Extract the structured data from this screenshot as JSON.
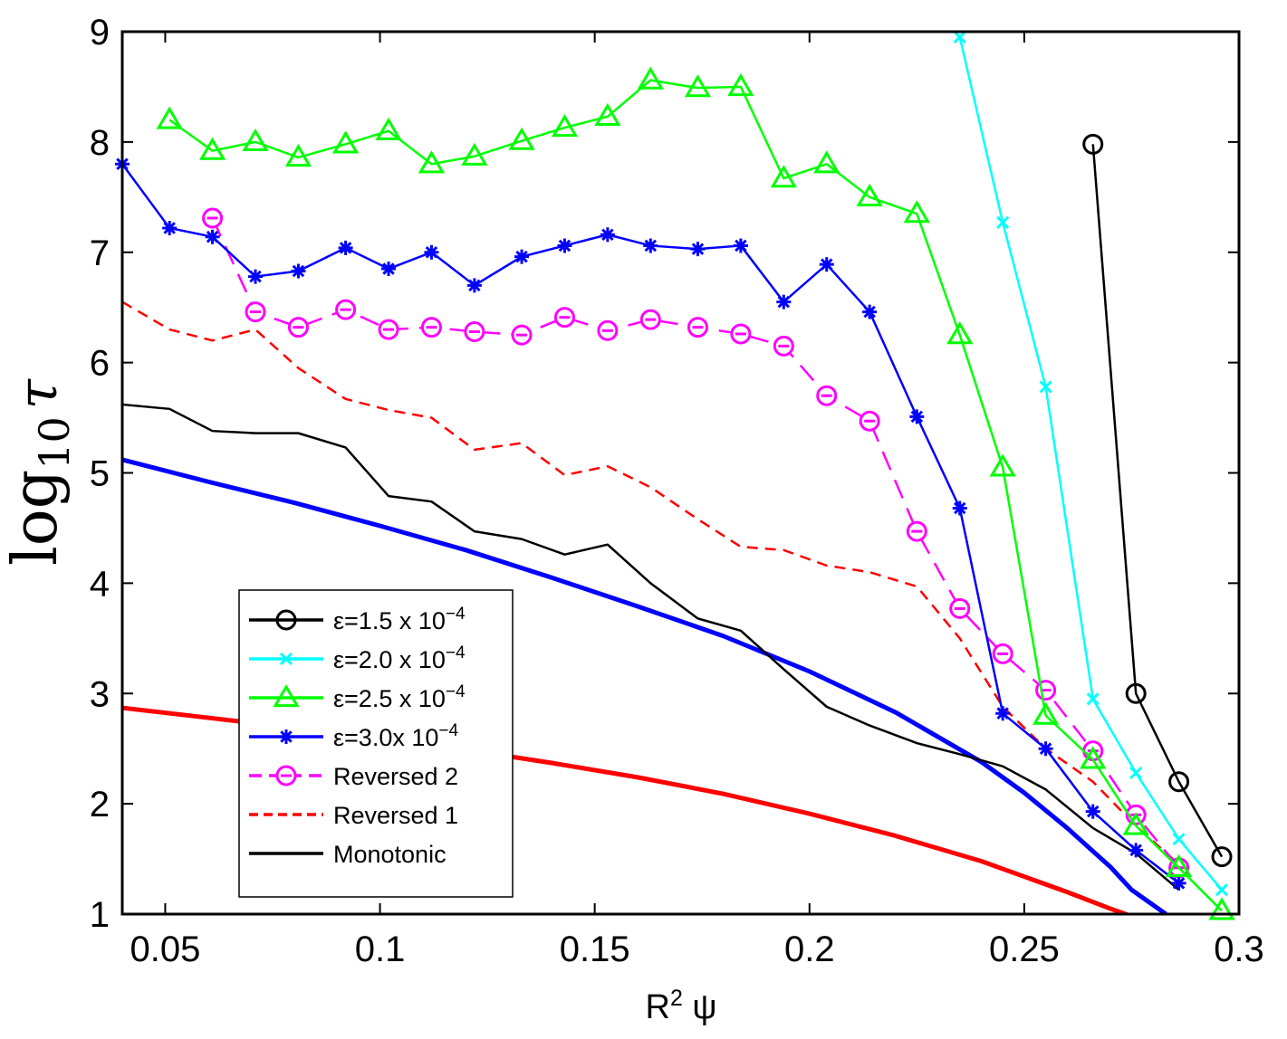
{
  "chart_data": {
    "type": "line",
    "title": "",
    "xlabel": "R",
    "xlabel_sup": "2",
    "xlabel_rest": " ψ",
    "ylabel_main": "log",
    "ylabel_sub": "10",
    "ylabel_sym": "τ",
    "xlim": [
      0.04,
      0.3
    ],
    "ylim": [
      1,
      9
    ],
    "xticks": [
      0.05,
      0.1,
      0.15,
      0.2,
      0.25,
      0.3
    ],
    "xtick_labels": [
      "0.05",
      "0.1",
      "0.15",
      "0.2",
      "0.25",
      "0.3"
    ],
    "yticks": [
      1,
      2,
      3,
      4,
      5,
      6,
      7,
      8,
      9
    ],
    "ytick_labels": [
      "1",
      "2",
      "3",
      "4",
      "5",
      "6",
      "7",
      "8",
      "9"
    ],
    "legend_position": "lower-left",
    "series": [
      {
        "name": "ε=1.5 x 10",
        "sup": "−4",
        "color": "#000000",
        "dash": "",
        "marker": "circle",
        "x": [
          0.266,
          0.276,
          0.286,
          0.296
        ],
        "y": [
          7.98,
          3.0,
          2.2,
          1.52
        ]
      },
      {
        "name": "ε=2.0 x 10",
        "sup": "−4",
        "color": "#00ffff",
        "dash": "",
        "marker": "x",
        "x": [
          0.235,
          0.245,
          0.255,
          0.266,
          0.276,
          0.286,
          0.296
        ],
        "y": [
          8.95,
          7.27,
          5.78,
          2.95,
          2.28,
          1.68,
          1.22
        ]
      },
      {
        "name": "ε=2.5 x 10",
        "sup": "−4",
        "color": "#00ff00",
        "dash": "",
        "marker": "triangle",
        "x": [
          0.051,
          0.061,
          0.071,
          0.081,
          0.092,
          0.102,
          0.112,
          0.122,
          0.133,
          0.143,
          0.153,
          0.163,
          0.174,
          0.184,
          0.194,
          0.204,
          0.214,
          0.225,
          0.235,
          0.245,
          0.255,
          0.266,
          0.276,
          0.286,
          0.296
        ],
        "y": [
          8.2,
          7.92,
          8.0,
          7.86,
          7.98,
          8.1,
          7.8,
          7.87,
          8.01,
          8.13,
          8.23,
          8.56,
          8.49,
          8.5,
          7.67,
          7.8,
          7.5,
          7.35,
          6.25,
          5.05,
          2.8,
          2.4,
          1.8,
          1.42,
          1.03
        ]
      },
      {
        "name": "ε=3.0x 10",
        "sup": "−4",
        "color": "#0000ff",
        "dash": "",
        "marker": "asterisk",
        "x": [
          0.04,
          0.051,
          0.061,
          0.071,
          0.081,
          0.092,
          0.102,
          0.112,
          0.122,
          0.133,
          0.143,
          0.153,
          0.163,
          0.174,
          0.184,
          0.194,
          0.204,
          0.214,
          0.225,
          0.235,
          0.245,
          0.255,
          0.266,
          0.276,
          0.286
        ],
        "y": [
          7.8,
          7.22,
          7.14,
          6.78,
          6.83,
          7.04,
          6.85,
          7.0,
          6.7,
          6.96,
          7.06,
          7.16,
          7.06,
          7.03,
          7.06,
          6.55,
          6.89,
          6.46,
          5.51,
          4.68,
          2.82,
          2.5,
          1.93,
          1.58,
          1.28
        ]
      },
      {
        "name": "Reversed 2",
        "sup": "",
        "color": "#ff00ff",
        "dash": "22 12",
        "marker": "circle-dash",
        "x": [
          0.061,
          0.071,
          0.081,
          0.092,
          0.102,
          0.112,
          0.122,
          0.133,
          0.143,
          0.153,
          0.163,
          0.174,
          0.184,
          0.194,
          0.204,
          0.214,
          0.225,
          0.235,
          0.245,
          0.255,
          0.266,
          0.276,
          0.286
        ],
        "y": [
          7.31,
          6.46,
          6.32,
          6.48,
          6.3,
          6.32,
          6.28,
          6.25,
          6.41,
          6.29,
          6.39,
          6.32,
          6.26,
          6.15,
          5.7,
          5.47,
          4.47,
          3.77,
          3.36,
          3.03,
          2.48,
          1.9,
          1.42
        ]
      },
      {
        "name": "Reversed 1",
        "sup": "",
        "color": "#ff0000",
        "dash": "12 8",
        "marker": "none",
        "x": [
          0.04,
          0.051,
          0.061,
          0.071,
          0.081,
          0.092,
          0.102,
          0.112,
          0.122,
          0.133,
          0.143,
          0.153,
          0.163,
          0.174,
          0.184,
          0.194,
          0.204,
          0.214,
          0.225,
          0.235,
          0.245,
          0.255,
          0.266,
          0.276,
          0.286
        ],
        "y": [
          6.55,
          6.3,
          6.2,
          6.3,
          5.95,
          5.67,
          5.57,
          5.5,
          5.21,
          5.27,
          4.98,
          5.06,
          4.87,
          4.58,
          4.33,
          4.3,
          4.16,
          4.1,
          3.97,
          3.5,
          2.88,
          2.5,
          2.2,
          1.8,
          1.45
        ]
      },
      {
        "name": "Monotonic",
        "sup": "",
        "color": "#000000",
        "dash": "",
        "marker": "none",
        "x": [
          0.04,
          0.051,
          0.061,
          0.071,
          0.081,
          0.092,
          0.102,
          0.112,
          0.122,
          0.133,
          0.143,
          0.153,
          0.163,
          0.174,
          0.184,
          0.194,
          0.204,
          0.214,
          0.225,
          0.235,
          0.245,
          0.255,
          0.266,
          0.276,
          0.286
        ],
        "y": [
          5.62,
          5.58,
          5.38,
          5.36,
          5.36,
          5.23,
          4.79,
          4.74,
          4.47,
          4.4,
          4.26,
          4.35,
          4.0,
          3.68,
          3.57,
          3.22,
          2.88,
          2.71,
          2.55,
          2.45,
          2.34,
          2.13,
          1.78,
          1.55,
          1.22
        ]
      }
    ],
    "curves": [
      {
        "name": "blue-fit-curve",
        "color": "#0000ff",
        "x": [
          0.04,
          0.06,
          0.08,
          0.1,
          0.12,
          0.14,
          0.16,
          0.18,
          0.2,
          0.22,
          0.24,
          0.25,
          0.26,
          0.27,
          0.275,
          0.283
        ],
        "y": [
          5.12,
          4.92,
          4.73,
          4.52,
          4.3,
          4.05,
          3.79,
          3.52,
          3.2,
          2.83,
          2.38,
          2.1,
          1.78,
          1.43,
          1.22,
          1.0
        ]
      },
      {
        "name": "red-fit-curve",
        "color": "#ff0000",
        "x": [
          0.04,
          0.06,
          0.08,
          0.1,
          0.12,
          0.14,
          0.16,
          0.18,
          0.2,
          0.22,
          0.24,
          0.25,
          0.26,
          0.27,
          0.275
        ],
        "y": [
          2.87,
          2.78,
          2.69,
          2.6,
          2.49,
          2.37,
          2.24,
          2.09,
          1.91,
          1.71,
          1.48,
          1.34,
          1.2,
          1.05,
          0.98
        ]
      }
    ]
  }
}
